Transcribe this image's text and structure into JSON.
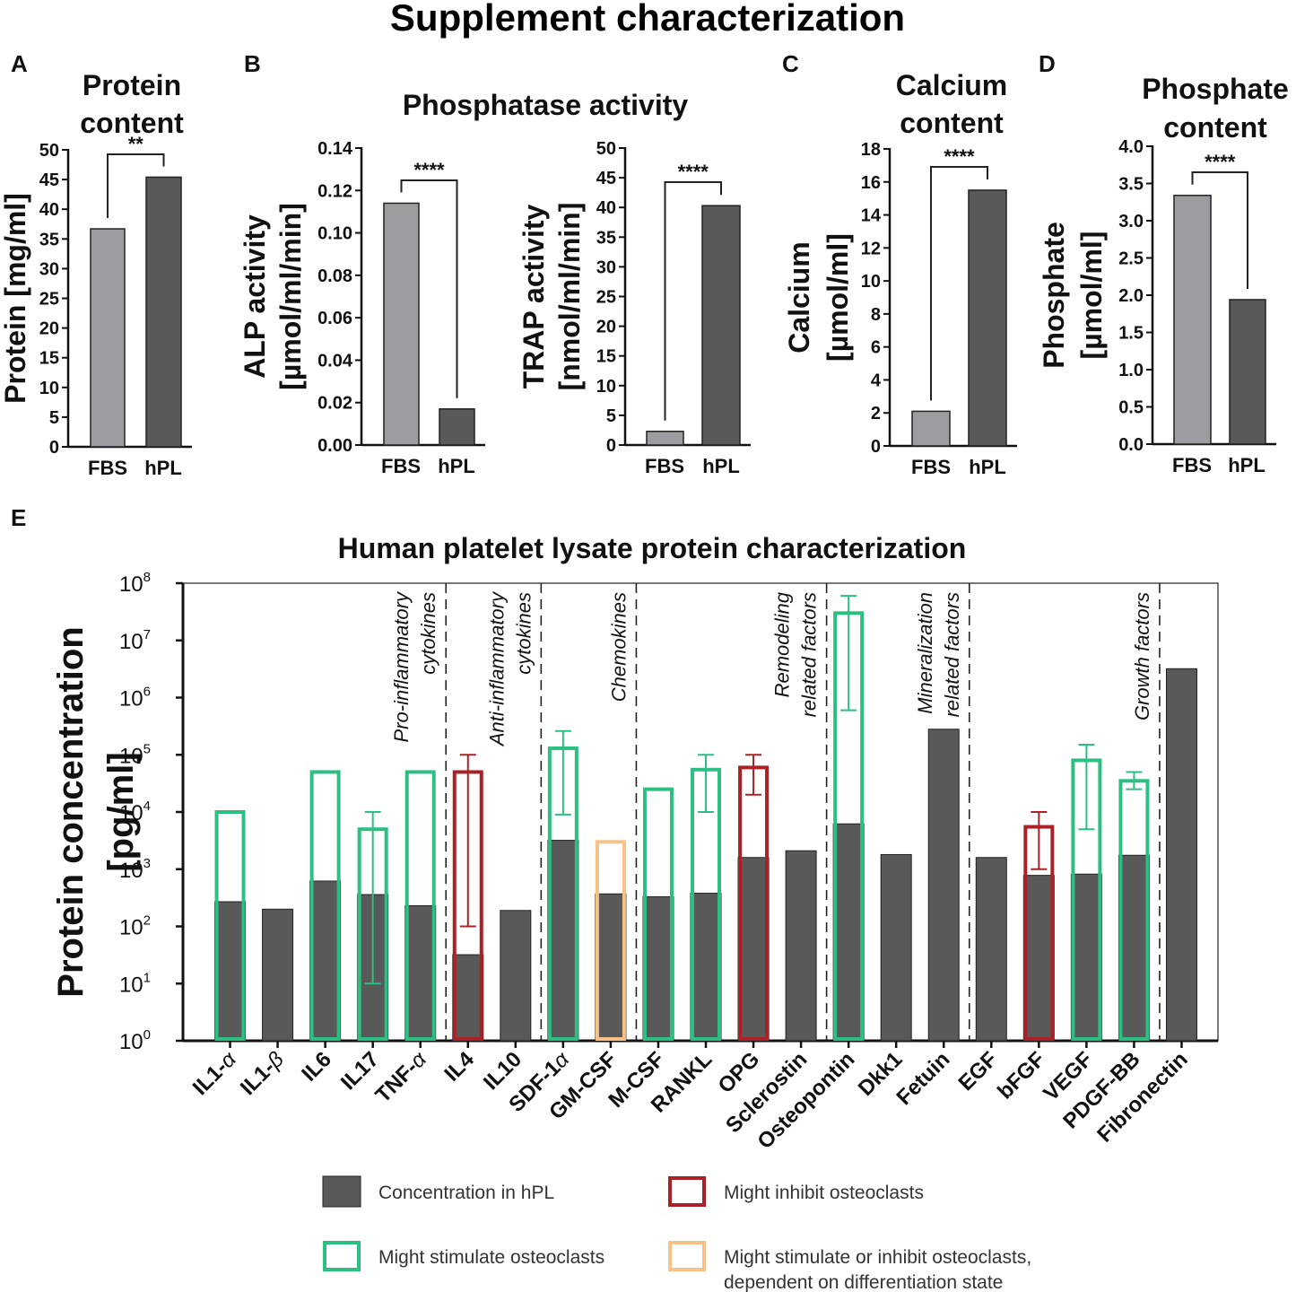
{
  "figure_title": "Supplement characterization",
  "colors": {
    "fbs": "#9d9da1",
    "hpl": "#595959",
    "stimulate": "#2dbf82",
    "inhibit": "#aa2227",
    "dual": "#f6c287",
    "axis": "#111111"
  },
  "chart_data": [
    {
      "panel": "A",
      "type": "bar",
      "title": [
        "Protein",
        "content"
      ],
      "ylabel": [
        "Protein [mg/ml]"
      ],
      "categories": [
        "FBS",
        "hPL"
      ],
      "values": [
        36.7,
        45.4
      ],
      "ylim": [
        0,
        50
      ],
      "ticks": [
        "0",
        "5",
        "10",
        "15",
        "20",
        "25",
        "30",
        "35",
        "40",
        "45",
        "50"
      ],
      "significance": "**"
    },
    {
      "panel": "B",
      "type": "bar",
      "title": [
        "Phosphatase activity"
      ],
      "ylabel": [
        "ALP activity",
        "[µmol/ml/min]"
      ],
      "categories": [
        "FBS",
        "hPL"
      ],
      "values": [
        0.114,
        0.017
      ],
      "ylim": [
        0,
        0.14
      ],
      "ticks": [
        "0.00",
        "0.02",
        "0.04",
        "0.06",
        "0.08",
        "0.10",
        "0.12",
        "0.14"
      ],
      "significance": "****"
    },
    {
      "panel": "B2",
      "type": "bar",
      "ylabel": [
        "TRAP activity",
        "[nmol/ml/min]"
      ],
      "categories": [
        "FBS",
        "hPL"
      ],
      "values": [
        2.3,
        40.3
      ],
      "ylim": [
        0,
        50
      ],
      "ticks": [
        "0",
        "5",
        "10",
        "15",
        "20",
        "25",
        "30",
        "35",
        "40",
        "45",
        "50"
      ],
      "significance": "****"
    },
    {
      "panel": "C",
      "type": "bar",
      "title": [
        "Calcium",
        "content"
      ],
      "ylabel": [
        "Calcium",
        "[µmol/ml]"
      ],
      "categories": [
        "FBS",
        "hPL"
      ],
      "values": [
        2.1,
        15.5
      ],
      "ylim": [
        0,
        18
      ],
      "ticks": [
        "0",
        "2",
        "4",
        "6",
        "8",
        "10",
        "12",
        "14",
        "16",
        "18"
      ],
      "significance": "****"
    },
    {
      "panel": "D",
      "type": "bar",
      "title": [
        "Phosphate",
        "content"
      ],
      "ylabel": [
        "Phosphate",
        "[µmol/ml]"
      ],
      "categories": [
        "FBS",
        "hPL"
      ],
      "values": [
        3.34,
        1.94
      ],
      "ylim": [
        0,
        4.0
      ],
      "ticks": [
        "0.0",
        "0.5",
        "1.0",
        "1.5",
        "2.0",
        "2.5",
        "3.0",
        "3.5",
        "4.0"
      ],
      "significance": "****"
    },
    {
      "panel": "E",
      "type": "bar",
      "scale": "log",
      "title": "Human platelet lysate protein characterization",
      "ylabel": [
        "Protein concentration",
        "[pg/ml]"
      ],
      "ylim": [
        1,
        100000000
      ],
      "ticks": [
        "10",
        "10",
        "10",
        "10",
        "10",
        "10",
        "10",
        "10",
        "10"
      ],
      "tick_exponents": [
        "0",
        "1",
        "2",
        "3",
        "4",
        "5",
        "6",
        "7",
        "8"
      ],
      "categories": [
        {
          "name": "IL1-",
          "greek": "α",
          "hpl": 270,
          "ref": 10000,
          "role": "stimulate",
          "err": null
        },
        {
          "name": "IL1-",
          "greek": "β",
          "hpl": 200,
          "ref": null,
          "role": null,
          "err": null
        },
        {
          "name": "IL6",
          "greek": "",
          "hpl": 620,
          "ref": 50000,
          "role": "stimulate",
          "err": null
        },
        {
          "name": "IL17",
          "greek": "",
          "hpl": 360,
          "ref": 5000,
          "role": "stimulate",
          "err": [
            10,
            10000
          ]
        },
        {
          "name": "TNF-",
          "greek": "α",
          "hpl": 230,
          "ref": 50000,
          "role": "stimulate",
          "err": null
        },
        {
          "name": "IL4",
          "greek": "",
          "hpl": 32,
          "ref": 50000,
          "role": "inhibit",
          "err": [
            100,
            100000
          ]
        },
        {
          "name": "IL10",
          "greek": "",
          "hpl": 190,
          "ref": null,
          "role": null,
          "err": null
        },
        {
          "name": "SDF-1",
          "greek": "α",
          "hpl": 3200,
          "ref": 130000,
          "role": "stimulate",
          "err": [
            9000,
            260000
          ]
        },
        {
          "name": "GM-CSF",
          "greek": "",
          "hpl": 370,
          "ref": 3000,
          "role": "dual",
          "err": null
        },
        {
          "name": "M-CSF",
          "greek": "",
          "hpl": 330,
          "ref": 25000,
          "role": "stimulate",
          "err": null
        },
        {
          "name": "RANKL",
          "greek": "",
          "hpl": 380,
          "ref": 55000,
          "role": "stimulate",
          "err": [
            10000,
            100000
          ]
        },
        {
          "name": "OPG",
          "greek": "",
          "hpl": 1600,
          "ref": 60000,
          "role": "inhibit",
          "err": [
            20000,
            100000
          ]
        },
        {
          "name": "Sclerostin",
          "greek": "",
          "hpl": 2100,
          "ref": null,
          "role": null,
          "err": null
        },
        {
          "name": "Osteopontin",
          "greek": "",
          "hpl": 6200,
          "ref": 30000000,
          "role": "stimulate",
          "err": [
            600000,
            60000000
          ]
        },
        {
          "name": "Dkk1",
          "greek": "",
          "hpl": 1800,
          "ref": null,
          "role": null,
          "err": null
        },
        {
          "name": "Fetuin",
          "greek": "",
          "hpl": 280000,
          "ref": null,
          "role": null,
          "err": null
        },
        {
          "name": "EGF",
          "greek": "",
          "hpl": 1600,
          "ref": null,
          "role": null,
          "err": null
        },
        {
          "name": "bFGF",
          "greek": "",
          "hpl": 780,
          "ref": 5500,
          "role": "inhibit",
          "err": [
            1000,
            10000
          ]
        },
        {
          "name": "VEGF",
          "greek": "",
          "hpl": 820,
          "ref": 80000,
          "role": "stimulate",
          "err": [
            5000,
            150000
          ]
        },
        {
          "name": "PDGF-BB",
          "greek": "",
          "hpl": 1750,
          "ref": 35000,
          "role": "stimulate",
          "err": [
            25000,
            50000
          ]
        },
        {
          "name": "Fibronectin",
          "greek": "",
          "hpl": 3200000,
          "ref": null,
          "role": null,
          "err": null
        }
      ],
      "groups": [
        {
          "lines": [
            "Pro-inflammatory",
            "cytokines"
          ]
        },
        {
          "lines": [
            "Anti-inflammatory",
            "cytokines"
          ]
        },
        {
          "lines": [
            "Chemokines"
          ]
        },
        {
          "lines": [
            "Remodeling",
            "related factors"
          ]
        },
        {
          "lines": [
            "Mineralization",
            "related factors"
          ]
        },
        {
          "lines": [
            "Growth factors"
          ]
        }
      ],
      "legend": [
        {
          "key": "hpl",
          "label": [
            "Concentration in hPL"
          ]
        },
        {
          "key": "inhibit",
          "label": [
            "Might inhibit osteoclasts"
          ]
        },
        {
          "key": "stimulate",
          "label": [
            "Might stimulate osteoclasts"
          ]
        },
        {
          "key": "dual",
          "label": [
            "Might stimulate or inhibit osteoclasts,",
            "dependent on differentiation state"
          ]
        }
      ]
    }
  ],
  "panel_labels": [
    "A",
    "B",
    "C",
    "D",
    "E"
  ]
}
